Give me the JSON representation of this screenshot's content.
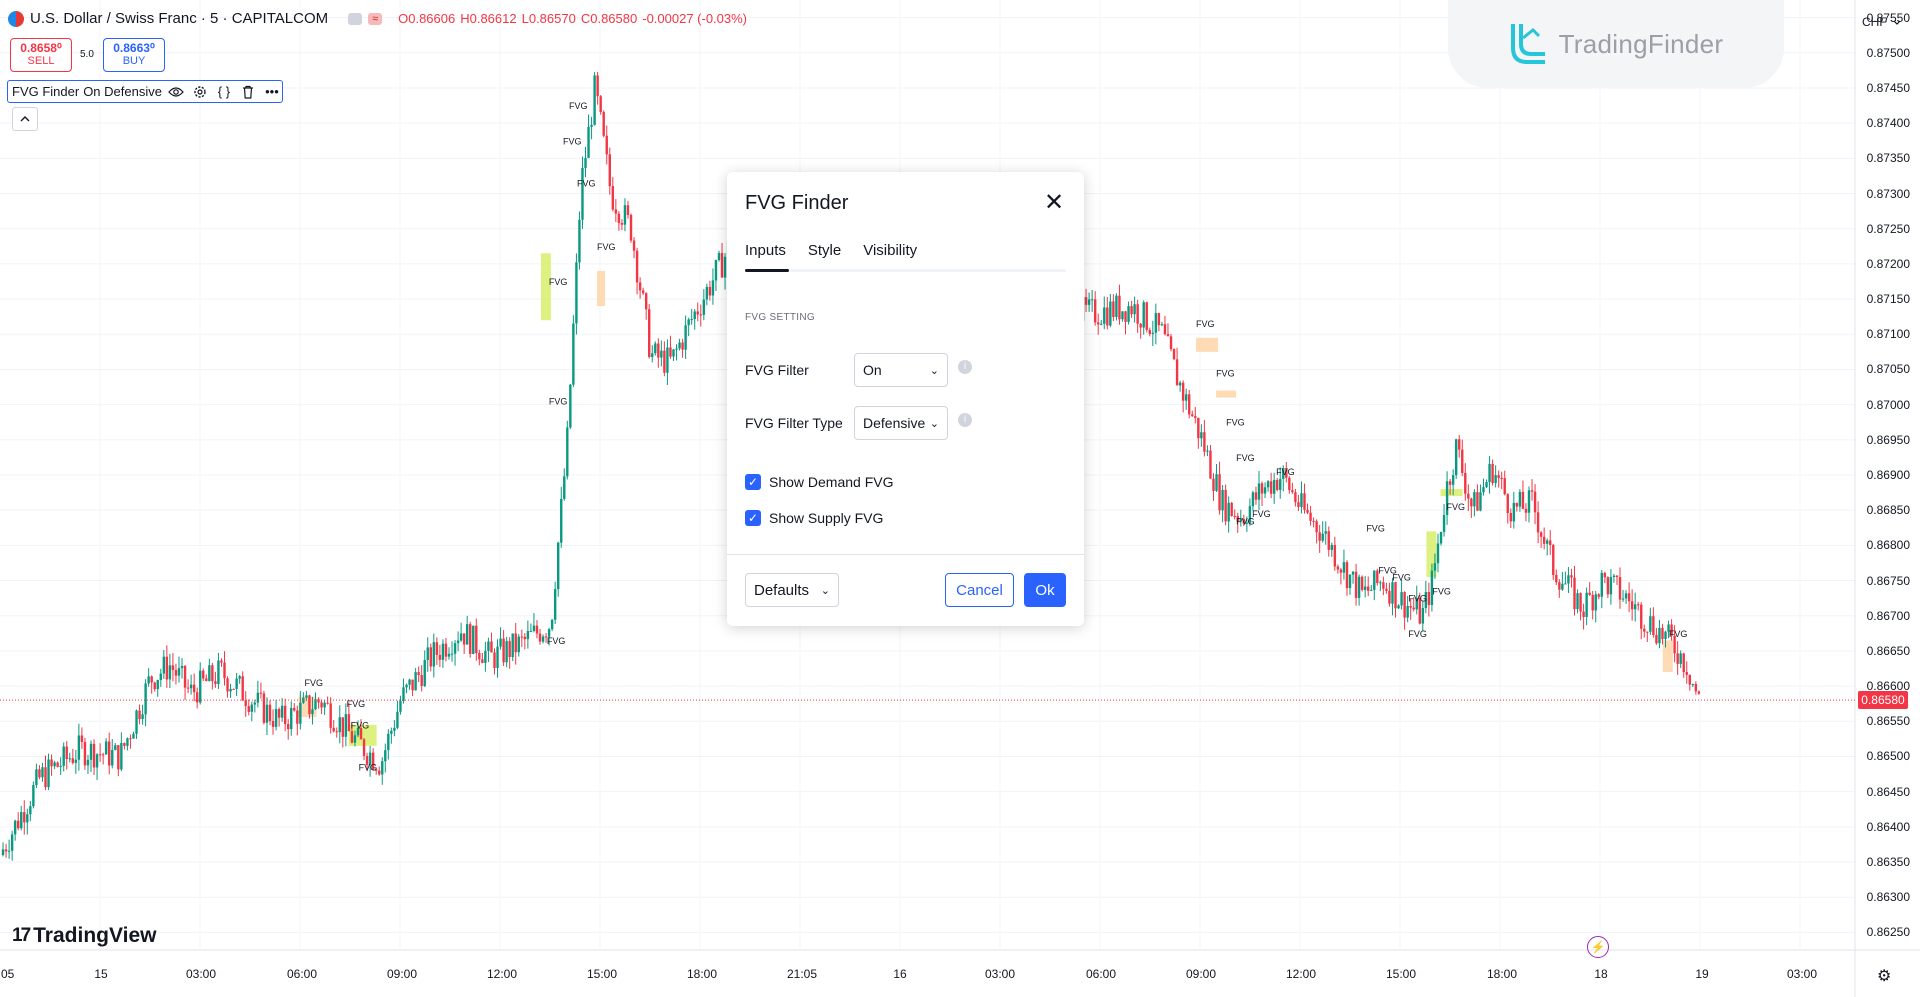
{
  "header": {
    "symbol": "U.S. Dollar / Swiss Franc · 5 · CAPITALCOM",
    "ohlc": {
      "open": "O0.86606",
      "high": "H0.86612",
      "low": "L0.86570",
      "close": "C0.86580",
      "change": "-0.00027 (-0.03%)"
    },
    "chip_label": "≈"
  },
  "trade": {
    "sell_price": "0.8658⁰",
    "sell_label": "SELL",
    "spread": "5.0",
    "buy_price": "0.8663⁰",
    "buy_label": "BUY"
  },
  "indicator": {
    "name": "FVG Finder",
    "values": "On Defensive"
  },
  "logo": {
    "brand": "TradingFinder"
  },
  "currency": "CHF",
  "colors": {
    "bull": "#089981",
    "bear": "#f23645",
    "accent": "#2962ff",
    "fvg_demand": "#d7ee6a",
    "fvg_supply": "#ffd5a8"
  },
  "price_axis": {
    "ticks": [
      "0.87550",
      "0.87500",
      "0.87450",
      "0.87400",
      "0.87350",
      "0.87300",
      "0.87250",
      "0.87200",
      "0.87150",
      "0.87100",
      "0.87050",
      "0.87000",
      "0.86950",
      "0.86900",
      "0.86850",
      "0.86800",
      "0.86750",
      "0.86700",
      "0.86650",
      "0.86600",
      "0.86550",
      "0.86500",
      "0.86450",
      "0.86400",
      "0.86350",
      "0.86300",
      "0.86250"
    ],
    "current_price": "0.86580"
  },
  "time_axis": {
    "ticks": [
      ":05",
      "15",
      "03:00",
      "06:00",
      "09:00",
      "12:00",
      "15:00",
      "18:00",
      "21:05",
      "16",
      "03:00",
      "06:00",
      "09:00",
      "12:00",
      "15:00",
      "18:00",
      "18",
      "19",
      "03:00"
    ]
  },
  "chart_data": {
    "type": "candlestick",
    "ylim": [
      0.86225,
      0.87575
    ],
    "current_price": 0.8658,
    "fvg_label": "FVG",
    "path": [
      [
        0,
        0.8636
      ],
      [
        0.02,
        0.8647
      ],
      [
        0.04,
        0.8651
      ],
      [
        0.06,
        0.865
      ],
      [
        0.075,
        0.8661
      ],
      [
        0.085,
        0.8663
      ],
      [
        0.095,
        0.8659
      ],
      [
        0.11,
        0.8662
      ],
      [
        0.13,
        0.8657
      ],
      [
        0.14,
        0.8655
      ],
      [
        0.16,
        0.8658
      ],
      [
        0.175,
        0.8653
      ],
      [
        0.19,
        0.8649
      ],
      [
        0.2,
        0.8658
      ],
      [
        0.215,
        0.8664
      ],
      [
        0.23,
        0.8668
      ],
      [
        0.245,
        0.8664
      ],
      [
        0.26,
        0.8666
      ],
      [
        0.275,
        0.8669
      ],
      [
        0.283,
        0.8694
      ],
      [
        0.29,
        0.8731
      ],
      [
        0.297,
        0.8745
      ],
      [
        0.305,
        0.873
      ],
      [
        0.315,
        0.8725
      ],
      [
        0.325,
        0.8707
      ],
      [
        0.335,
        0.8706
      ],
      [
        0.345,
        0.8712
      ],
      [
        0.36,
        0.872
      ],
      [
        0.375,
        0.8729
      ],
      [
        0.39,
        0.8724
      ],
      [
        0.41,
        0.872
      ],
      [
        0.45,
        0.8716
      ],
      [
        0.5,
        0.8714
      ],
      [
        0.545,
        0.8713
      ],
      [
        0.565,
        0.8714
      ],
      [
        0.58,
        0.871
      ],
      [
        0.59,
        0.8702
      ],
      [
        0.6,
        0.8695
      ],
      [
        0.61,
        0.8686
      ],
      [
        0.62,
        0.8684
      ],
      [
        0.63,
        0.8688
      ],
      [
        0.64,
        0.869
      ],
      [
        0.65,
        0.8685
      ],
      [
        0.66,
        0.8682
      ],
      [
        0.67,
        0.8677
      ],
      [
        0.68,
        0.8673
      ],
      [
        0.69,
        0.8675
      ],
      [
        0.7,
        0.8672
      ],
      [
        0.71,
        0.867
      ],
      [
        0.715,
        0.8675
      ],
      [
        0.722,
        0.8688
      ],
      [
        0.727,
        0.8694
      ],
      [
        0.735,
        0.8685
      ],
      [
        0.745,
        0.8691
      ],
      [
        0.755,
        0.8685
      ],
      [
        0.765,
        0.8686
      ],
      [
        0.775,
        0.8677
      ],
      [
        0.79,
        0.8671
      ],
      [
        0.8,
        0.8675
      ],
      [
        0.81,
        0.8673
      ],
      [
        0.82,
        0.867
      ],
      [
        0.835,
        0.8666
      ],
      [
        0.842,
        0.8663
      ],
      [
        0.848,
        0.8658
      ]
    ],
    "fvg_boxes": [
      {
        "t0": 0.149,
        "t1": 0.158,
        "p0": 0.86556,
        "p1": 0.86585,
        "kind": "supply"
      },
      {
        "t0": 0.174,
        "t1": 0.188,
        "p0": 0.86515,
        "p1": 0.86545,
        "kind": "demand"
      },
      {
        "t0": 0.27,
        "t1": 0.275,
        "p0": 0.8712,
        "p1": 0.87215,
        "kind": "demand"
      },
      {
        "t0": 0.298,
        "t1": 0.302,
        "p0": 0.8714,
        "p1": 0.8719,
        "kind": "supply"
      },
      {
        "t0": 0.597,
        "t1": 0.608,
        "p0": 0.87075,
        "p1": 0.87095,
        "kind": "supply"
      },
      {
        "t0": 0.607,
        "t1": 0.617,
        "p0": 0.8701,
        "p1": 0.8702,
        "kind": "supply"
      },
      {
        "t0": 0.712,
        "t1": 0.717,
        "p0": 0.86755,
        "p1": 0.8682,
        "kind": "demand"
      },
      {
        "t0": 0.719,
        "t1": 0.73,
        "p0": 0.8687,
        "p1": 0.8688,
        "kind": "demand"
      },
      {
        "t0": 0.83,
        "t1": 0.835,
        "p0": 0.8662,
        "p1": 0.86665,
        "kind": "supply"
      }
    ],
    "fvg_marks": [
      [
        0.152,
        0.866
      ],
      [
        0.173,
        0.8657
      ],
      [
        0.179,
        0.8648
      ],
      [
        0.175,
        0.8654
      ],
      [
        0.274,
        0.87
      ],
      [
        0.274,
        0.8717
      ],
      [
        0.281,
        0.8737
      ],
      [
        0.284,
        0.8742
      ],
      [
        0.288,
        0.8731
      ],
      [
        0.298,
        0.8722
      ],
      [
        0.273,
        0.8666
      ],
      [
        0.597,
        0.8711
      ],
      [
        0.607,
        0.8704
      ],
      [
        0.612,
        0.8697
      ],
      [
        0.617,
        0.8692
      ],
      [
        0.637,
        0.869
      ],
      [
        0.617,
        0.8683
      ],
      [
        0.625,
        0.8684
      ],
      [
        0.682,
        0.8682
      ],
      [
        0.688,
        0.8676
      ],
      [
        0.695,
        0.8675
      ],
      [
        0.703,
        0.8672
      ],
      [
        0.715,
        0.8673
      ],
      [
        0.722,
        0.8685
      ],
      [
        0.703,
        0.8667
      ],
      [
        0.833,
        0.8667
      ]
    ]
  },
  "dialog": {
    "title": "FVG Finder",
    "tabs": [
      "Inputs",
      "Style",
      "Visibility"
    ],
    "active_tab": "Inputs",
    "section": "FVG SETTING",
    "fvg_filter": {
      "label": "FVG Filter",
      "value": "On"
    },
    "fvg_filter_type": {
      "label": "FVG Filter Type",
      "value": "Defensive"
    },
    "show_demand": {
      "label": "Show Demand FVG",
      "checked": true
    },
    "show_supply": {
      "label": "Show Supply FVG",
      "checked": true
    },
    "defaults": "Defaults",
    "cancel": "Cancel",
    "ok": "Ok"
  },
  "branding": {
    "tradingview": "TradingView"
  }
}
